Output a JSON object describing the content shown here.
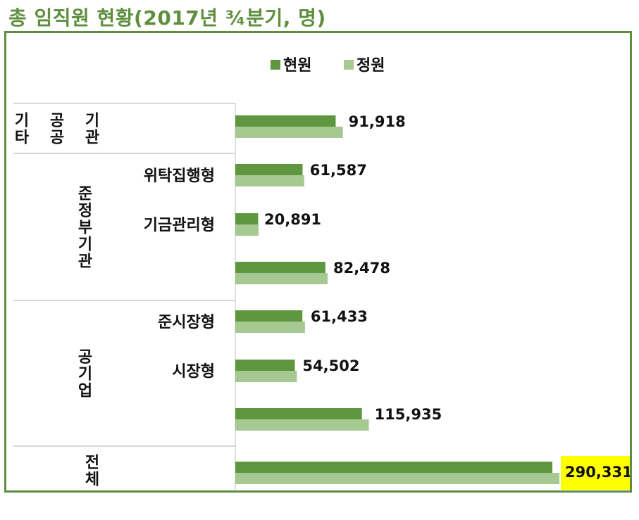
{
  "title": "총 임직원 현황(2017년 ¾분기, 명)",
  "colors": {
    "title": "#5e8e3e",
    "frame": "#5e8e3e",
    "current": "#5e973f",
    "quota": "#a6c891",
    "highlight": "#ffff00"
  },
  "chart_data": {
    "type": "bar",
    "orientation": "horizontal",
    "legend": {
      "position": "top",
      "entries": [
        "현원",
        "정원"
      ]
    },
    "groups": [
      {
        "label": "기타 공공 기관",
        "columns": [
          "기타",
          "공공",
          "기관"
        ]
      },
      {
        "label": "준정부기관",
        "columns": [
          "준정부기관"
        ]
      },
      {
        "label": "공기업",
        "columns": [
          "공기업"
        ]
      },
      {
        "label": "전체",
        "columns": [
          "전체"
        ]
      }
    ],
    "rows": [
      {
        "group": 0,
        "category": "",
        "value_label": "91,918",
        "highlight": false
      },
      {
        "group": 1,
        "category": "위탁집행형",
        "value_label": "61,587",
        "highlight": false
      },
      {
        "group": 1,
        "category": "기금관리형",
        "value_label": "20,891",
        "highlight": false
      },
      {
        "group": 1,
        "category": "",
        "value_label": "82,478",
        "highlight": false
      },
      {
        "group": 2,
        "category": "준시장형",
        "value_label": "61,433",
        "highlight": false
      },
      {
        "group": 2,
        "category": "시장형",
        "value_label": "54,502",
        "highlight": false
      },
      {
        "group": 2,
        "category": "",
        "value_label": "115,935",
        "highlight": false
      },
      {
        "group": 3,
        "category": "",
        "value_label": "290,331",
        "highlight": true
      }
    ],
    "series": [
      {
        "name": "현원",
        "values": [
          91918,
          61587,
          20891,
          82478,
          61433,
          54502,
          115935,
          290331
        ]
      },
      {
        "name": "정원",
        "values": [
          98500,
          63100,
          21300,
          84500,
          63800,
          56400,
          122300,
          296800
        ]
      }
    ],
    "xlim": [
      0,
      300000
    ],
    "grid": false
  }
}
